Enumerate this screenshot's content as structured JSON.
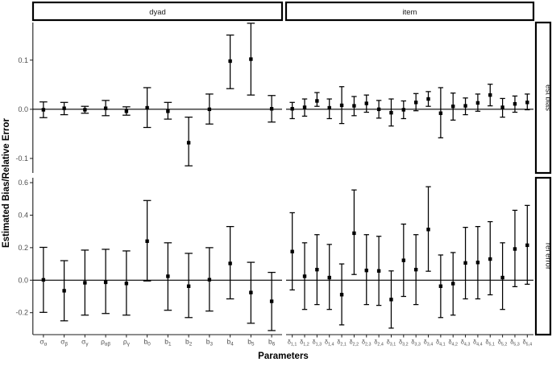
{
  "chart_data": {
    "type": "scatter",
    "marker": "square",
    "error_bars": true,
    "grid": false,
    "xlabel": "Parameters",
    "ylabel": "Estimated Bias/Relative Error",
    "hline": 0,
    "facet_cols": [
      {
        "id": "dyad",
        "label": "dyad"
      },
      {
        "id": "item",
        "label": "item"
      }
    ],
    "facet_rows": [
      {
        "id": "est-bias",
        "label": "est bias",
        "ylim": [
          -0.1295,
          0.1765
        ],
        "yticks": [
          {
            "value": 0.1,
            "label": "0.1"
          },
          {
            "value": 0.0,
            "label": "0.0"
          },
          {
            "value": -0.1,
            "label": "-0.1"
          }
        ]
      },
      {
        "id": "rel-error",
        "label": "rel error",
        "ylim": [
          -0.335,
          0.63
        ],
        "yticks": [
          {
            "value": 0.6,
            "label": "0.6"
          },
          {
            "value": 0.4,
            "label": "0.4"
          },
          {
            "value": 0.2,
            "label": "0.2"
          },
          {
            "value": 0.0,
            "label": "0.0"
          },
          {
            "value": -0.2,
            "label": "-0.2"
          }
        ]
      }
    ],
    "x_categories": {
      "dyad": [
        {
          "main": "σ",
          "sub": "α"
        },
        {
          "main": "σ",
          "sub": "β"
        },
        {
          "main": "σ",
          "sub": "γ"
        },
        {
          "main": "ρ",
          "sub": "αβ"
        },
        {
          "main": "ρ",
          "sub": "γ"
        },
        {
          "main": "b",
          "sub": "0"
        },
        {
          "main": "b",
          "sub": "1"
        },
        {
          "main": "b",
          "sub": "2"
        },
        {
          "main": "b",
          "sub": "3"
        },
        {
          "main": "b",
          "sub": "4"
        },
        {
          "main": "b",
          "sub": "5"
        },
        {
          "main": "b",
          "sub": "6"
        }
      ],
      "item": [
        {
          "main": "δ",
          "sub": "1,1"
        },
        {
          "main": "δ",
          "sub": "1,2"
        },
        {
          "main": "δ",
          "sub": "1,3"
        },
        {
          "main": "δ",
          "sub": "1,4"
        },
        {
          "main": "δ",
          "sub": "2,1"
        },
        {
          "main": "δ",
          "sub": "2,2"
        },
        {
          "main": "δ",
          "sub": "2,3"
        },
        {
          "main": "δ",
          "sub": "2,4"
        },
        {
          "main": "δ",
          "sub": "3,1"
        },
        {
          "main": "δ",
          "sub": "3,2"
        },
        {
          "main": "δ",
          "sub": "3,3"
        },
        {
          "main": "δ",
          "sub": "3,4"
        },
        {
          "main": "δ",
          "sub": "4,1"
        },
        {
          "main": "δ",
          "sub": "4,2"
        },
        {
          "main": "δ",
          "sub": "4,3"
        },
        {
          "main": "δ",
          "sub": "4,4"
        },
        {
          "main": "δ",
          "sub": "5,1"
        },
        {
          "main": "δ",
          "sub": "5,2"
        },
        {
          "main": "δ",
          "sub": "5,3"
        },
        {
          "main": "δ",
          "sub": "5,4"
        }
      ]
    },
    "panels": [
      {
        "facet_row": "est-bias",
        "facet_col": "dyad",
        "points": [
          {
            "est": -0.001,
            "lo": -0.017,
            "hi": 0.015
          },
          {
            "est": 0.002,
            "lo": -0.011,
            "hi": 0.014
          },
          {
            "est": -0.001,
            "lo": -0.008,
            "hi": 0.006
          },
          {
            "est": 0.002,
            "lo": -0.013,
            "hi": 0.018
          },
          {
            "est": -0.004,
            "lo": -0.012,
            "hi": 0.005
          },
          {
            "est": 0.003,
            "lo": -0.037,
            "hi": 0.044
          },
          {
            "est": -0.004,
            "lo": -0.02,
            "hi": 0.014
          },
          {
            "est": -0.068,
            "lo": -0.115,
            "hi": -0.016
          },
          {
            "est": 0.0,
            "lo": -0.03,
            "hi": 0.031
          },
          {
            "est": 0.098,
            "lo": 0.042,
            "hi": 0.151
          },
          {
            "est": 0.102,
            "lo": 0.029,
            "hi": 0.175
          },
          {
            "est": 0.001,
            "lo": -0.026,
            "hi": 0.028
          }
        ]
      },
      {
        "facet_row": "est-bias",
        "facet_col": "item",
        "points": [
          {
            "est": 0.001,
            "lo": -0.019,
            "hi": 0.014
          },
          {
            "est": 0.004,
            "lo": -0.014,
            "hi": 0.021
          },
          {
            "est": 0.017,
            "lo": 0.006,
            "hi": 0.034
          },
          {
            "est": 0.003,
            "lo": -0.019,
            "hi": 0.021
          },
          {
            "est": 0.008,
            "lo": -0.029,
            "hi": 0.046
          },
          {
            "est": 0.007,
            "lo": -0.013,
            "hi": 0.026
          },
          {
            "est": 0.012,
            "lo": -0.006,
            "hi": 0.029
          },
          {
            "est": 0.0,
            "lo": -0.018,
            "hi": 0.018
          },
          {
            "est": -0.007,
            "lo": -0.034,
            "hi": 0.021
          },
          {
            "est": -0.001,
            "lo": -0.019,
            "hi": 0.017
          },
          {
            "est": 0.014,
            "lo": -0.003,
            "hi": 0.032
          },
          {
            "est": 0.021,
            "lo": 0.006,
            "hi": 0.036
          },
          {
            "est": -0.008,
            "lo": -0.058,
            "hi": 0.044
          },
          {
            "est": 0.006,
            "lo": -0.022,
            "hi": 0.033
          },
          {
            "est": 0.007,
            "lo": -0.011,
            "hi": 0.023
          },
          {
            "est": 0.013,
            "lo": -0.004,
            "hi": 0.031
          },
          {
            "est": 0.029,
            "lo": 0.007,
            "hi": 0.051
          },
          {
            "est": 0.004,
            "lo": -0.016,
            "hi": 0.022
          },
          {
            "est": 0.011,
            "lo": -0.006,
            "hi": 0.027
          },
          {
            "est": 0.014,
            "lo": -0.001,
            "hi": 0.031
          }
        ]
      },
      {
        "facet_row": "rel-error",
        "facet_col": "dyad",
        "points": [
          {
            "est": 0.002,
            "lo": -0.198,
            "hi": 0.202
          },
          {
            "est": -0.065,
            "lo": -0.25,
            "hi": 0.12
          },
          {
            "est": -0.016,
            "lo": -0.215,
            "hi": 0.185
          },
          {
            "est": -0.013,
            "lo": -0.205,
            "hi": 0.19
          },
          {
            "est": -0.02,
            "lo": -0.215,
            "hi": 0.18
          },
          {
            "est": 0.24,
            "lo": -0.005,
            "hi": 0.49
          },
          {
            "est": 0.024,
            "lo": -0.185,
            "hi": 0.23
          },
          {
            "est": -0.037,
            "lo": -0.23,
            "hi": 0.165
          },
          {
            "est": 0.003,
            "lo": -0.19,
            "hi": 0.2
          },
          {
            "est": 0.103,
            "lo": -0.115,
            "hi": 0.33
          },
          {
            "est": -0.076,
            "lo": -0.265,
            "hi": 0.11
          },
          {
            "est": -0.13,
            "lo": -0.31,
            "hi": 0.048
          }
        ]
      },
      {
        "facet_row": "rel-error",
        "facet_col": "item",
        "points": [
          {
            "est": 0.176,
            "lo": -0.06,
            "hi": 0.415
          },
          {
            "est": 0.024,
            "lo": -0.18,
            "hi": 0.23
          },
          {
            "est": 0.065,
            "lo": -0.15,
            "hi": 0.28
          },
          {
            "est": 0.016,
            "lo": -0.18,
            "hi": 0.22
          },
          {
            "est": -0.089,
            "lo": -0.275,
            "hi": 0.1
          },
          {
            "est": 0.289,
            "lo": 0.035,
            "hi": 0.555
          },
          {
            "est": 0.06,
            "lo": -0.15,
            "hi": 0.28
          },
          {
            "est": 0.057,
            "lo": -0.155,
            "hi": 0.27
          },
          {
            "est": -0.119,
            "lo": -0.295,
            "hi": 0.057
          },
          {
            "est": 0.122,
            "lo": -0.1,
            "hi": 0.345
          },
          {
            "est": 0.065,
            "lo": -0.15,
            "hi": 0.28
          },
          {
            "est": 0.312,
            "lo": 0.055,
            "hi": 0.575
          },
          {
            "est": -0.037,
            "lo": -0.23,
            "hi": 0.155
          },
          {
            "est": -0.021,
            "lo": -0.215,
            "hi": 0.17
          },
          {
            "est": 0.106,
            "lo": -0.115,
            "hi": 0.325
          },
          {
            "est": 0.109,
            "lo": -0.115,
            "hi": 0.33
          },
          {
            "est": 0.13,
            "lo": -0.09,
            "hi": 0.36
          },
          {
            "est": 0.016,
            "lo": -0.18,
            "hi": 0.23
          },
          {
            "est": 0.192,
            "lo": -0.04,
            "hi": 0.43
          },
          {
            "est": 0.215,
            "lo": -0.025,
            "hi": 0.46
          }
        ]
      }
    ],
    "colors": {
      "marks": "#000000",
      "axis_line": "#1a1a1a",
      "tick_text": "#4d4d4d",
      "strip_text": "#1a1a1a",
      "strip_border": "#000000",
      "strip_fill": "#ffffff",
      "background": "#ffffff"
    }
  }
}
